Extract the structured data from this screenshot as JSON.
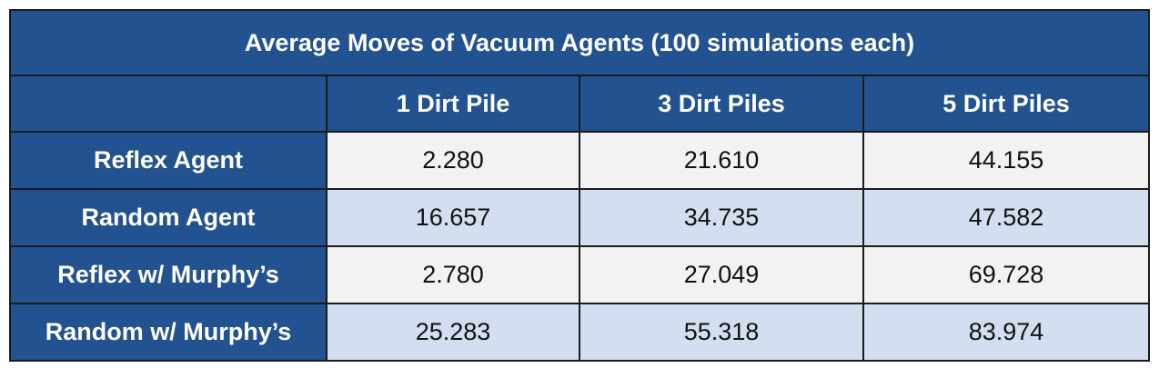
{
  "chart_data": {
    "type": "table",
    "title": "Average Moves of Vacuum Agents (100 simulations each)",
    "corner": "",
    "columns": [
      "1 Dirt Pile",
      "3 Dirt Piles",
      "5 Dirt Piles"
    ],
    "rows": [
      {
        "label": "Reflex Agent",
        "values": [
          "2.280",
          "21.610",
          "44.155"
        ]
      },
      {
        "label": "Random Agent",
        "values": [
          "16.657",
          "34.735",
          "47.582"
        ]
      },
      {
        "label": "Reflex w/ Murphy’s",
        "values": [
          "2.780",
          "27.049",
          "69.728"
        ]
      },
      {
        "label": "Random w/ Murphy’s",
        "values": [
          "25.283",
          "55.318",
          "83.974"
        ]
      }
    ]
  },
  "colors": {
    "header_bg": "#225290",
    "header_text": "#ffffff",
    "row_odd_bg": "#f2f2f2",
    "row_even_bg": "#d3dff0",
    "border": "#1b1b1b"
  }
}
